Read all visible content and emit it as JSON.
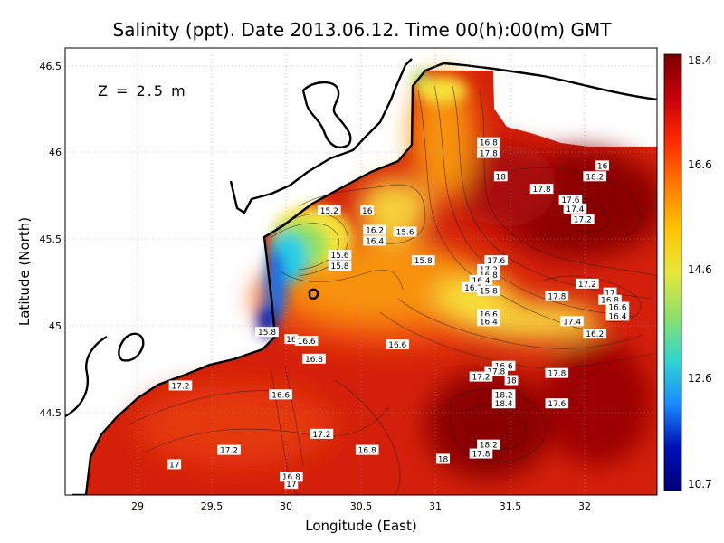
{
  "title": "Salinity (ppt). Date 2013.06.12. Time 00(h):00(m) GMT",
  "depth_label": "Z = 2.5 m",
  "xlabel": "Longitude (East)",
  "ylabel": "Latitude (North)",
  "x_ticks": [
    "29",
    "29.5",
    "30",
    "30.5",
    "31",
    "31.5",
    "32"
  ],
  "y_ticks": [
    "46.5",
    "46",
    "45.5",
    "45",
    "44.5"
  ],
  "colorbar": {
    "ticks": [
      "18.4",
      "16.6",
      "14.6",
      "12.6",
      "10.7"
    ],
    "colors": [
      "#7a0000",
      "#c8000b",
      "#ff2a00",
      "#ff7a00",
      "#ffc400",
      "#e8e83a",
      "#8ee06a",
      "#2fd8d0",
      "#1a8cff",
      "#0010b8",
      "#00007a"
    ]
  },
  "map": {
    "lon_range": [
      28.55,
      32.45
    ],
    "lat_range": [
      44.05,
      46.55
    ],
    "colors": {
      "deep_red": "#8a0404",
      "red": "#d4200a",
      "orange_red": "#f0500c",
      "orange": "#f8920c",
      "light_orange": "#fab52a",
      "yellow": "#f6e23a",
      "green": "#8fe15e",
      "cyan": "#2ccfe0",
      "blue": "#1d6fe5",
      "dark_blue": "#0a14b0",
      "land": "#ffffff"
    },
    "contour_labels": [
      {
        "text": "15.2",
        "lon": 30.29,
        "lat": 45.64
      },
      {
        "text": "16",
        "lon": 30.54,
        "lat": 45.64
      },
      {
        "text": "16.2",
        "lon": 30.59,
        "lat": 45.53
      },
      {
        "text": "15.6",
        "lon": 30.79,
        "lat": 45.52
      },
      {
        "text": "16.4",
        "lon": 30.59,
        "lat": 45.47
      },
      {
        "text": "15.6",
        "lon": 30.36,
        "lat": 45.39
      },
      {
        "text": "15.8",
        "lon": 30.36,
        "lat": 45.33
      },
      {
        "text": "15.8",
        "lon": 30.91,
        "lat": 45.36
      },
      {
        "text": "15.8",
        "lon": 29.88,
        "lat": 44.96
      },
      {
        "text": "16",
        "lon": 30.04,
        "lat": 44.92
      },
      {
        "text": "16.6",
        "lon": 30.14,
        "lat": 44.91
      },
      {
        "text": "16.6",
        "lon": 30.74,
        "lat": 44.89
      },
      {
        "text": "16.8",
        "lon": 30.19,
        "lat": 44.81
      },
      {
        "text": "17.2",
        "lon": 29.31,
        "lat": 44.66
      },
      {
        "text": "16.6",
        "lon": 29.97,
        "lat": 44.61
      },
      {
        "text": "17.2",
        "lon": 30.24,
        "lat": 44.39
      },
      {
        "text": "17.2",
        "lon": 29.63,
        "lat": 44.3
      },
      {
        "text": "16.8",
        "lon": 30.54,
        "lat": 44.3
      },
      {
        "text": "17",
        "lon": 29.27,
        "lat": 44.22
      },
      {
        "text": "16.8",
        "lon": 30.04,
        "lat": 44.15
      },
      {
        "text": "17",
        "lon": 30.04,
        "lat": 44.11
      },
      {
        "text": "16.8",
        "lon": 31.34,
        "lat": 46.02
      },
      {
        "text": "17.8",
        "lon": 31.34,
        "lat": 45.96
      },
      {
        "text": "18",
        "lon": 31.42,
        "lat": 45.83
      },
      {
        "text": "16",
        "lon": 32.09,
        "lat": 45.89
      },
      {
        "text": "18.2",
        "lon": 32.04,
        "lat": 45.83
      },
      {
        "text": "17.8",
        "lon": 31.69,
        "lat": 45.76
      },
      {
        "text": "17.6",
        "lon": 31.88,
        "lat": 45.7
      },
      {
        "text": "17.4",
        "lon": 31.91,
        "lat": 45.65
      },
      {
        "text": "17.2",
        "lon": 31.96,
        "lat": 45.59
      },
      {
        "text": "17.6",
        "lon": 31.39,
        "lat": 45.36
      },
      {
        "text": "17.2",
        "lon": 31.34,
        "lat": 45.31
      },
      {
        "text": "16.8",
        "lon": 31.34,
        "lat": 45.28
      },
      {
        "text": "16.4",
        "lon": 31.29,
        "lat": 45.25
      },
      {
        "text": "16.2",
        "lon": 31.24,
        "lat": 45.21
      },
      {
        "text": "15.8",
        "lon": 31.34,
        "lat": 45.19
      },
      {
        "text": "17.2",
        "lon": 31.99,
        "lat": 45.23
      },
      {
        "text": "17",
        "lon": 32.14,
        "lat": 45.18
      },
      {
        "text": "16.8",
        "lon": 32.14,
        "lat": 45.14
      },
      {
        "text": "17.8",
        "lon": 31.79,
        "lat": 45.16
      },
      {
        "text": "16.6",
        "lon": 32.19,
        "lat": 45.1
      },
      {
        "text": "16.4",
        "lon": 32.19,
        "lat": 45.05
      },
      {
        "text": "16.6",
        "lon": 31.34,
        "lat": 45.06
      },
      {
        "text": "16.4",
        "lon": 31.34,
        "lat": 45.02
      },
      {
        "text": "17.4",
        "lon": 31.89,
        "lat": 45.02
      },
      {
        "text": "16.2",
        "lon": 32.04,
        "lat": 44.95
      },
      {
        "text": "16.6",
        "lon": 31.44,
        "lat": 44.77
      },
      {
        "text": "17.8",
        "lon": 31.39,
        "lat": 44.74
      },
      {
        "text": "17.2",
        "lon": 31.29,
        "lat": 44.71
      },
      {
        "text": "17.8",
        "lon": 31.79,
        "lat": 44.73
      },
      {
        "text": "18",
        "lon": 31.49,
        "lat": 44.69
      },
      {
        "text": "18.2",
        "lon": 31.44,
        "lat": 44.61
      },
      {
        "text": "18.4",
        "lon": 31.44,
        "lat": 44.56
      },
      {
        "text": "17.6",
        "lon": 31.79,
        "lat": 44.56
      },
      {
        "text": "18.2",
        "lon": 31.34,
        "lat": 44.33
      },
      {
        "text": "17.8",
        "lon": 31.29,
        "lat": 44.28
      },
      {
        "text": "18",
        "lon": 31.04,
        "lat": 44.25
      }
    ]
  }
}
